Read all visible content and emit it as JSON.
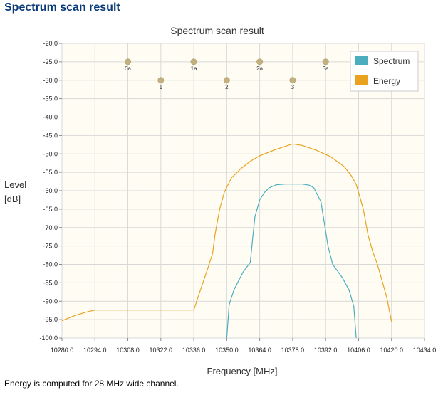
{
  "header": {
    "title": "Spectrum scan result"
  },
  "footer": {
    "note": "Energy is computed for 28 MHz wide channel."
  },
  "colors": {
    "spectrum": "#4aaebf",
    "energy": "#e8a21e",
    "plot_bg": "#fffdf3",
    "grid": "#d8d8d8",
    "marker": "#c2b07e"
  },
  "chart_data": {
    "type": "line",
    "title": "Spectrum scan result",
    "xlabel": "Frequency [MHz]",
    "ylabel": "Level [dB]",
    "ylabel_lines": [
      "Level",
      "[dB]"
    ],
    "xlim": [
      10280,
      10434
    ],
    "ylim": [
      -100,
      -20
    ],
    "x_ticks": [
      "10280.0",
      "10294.0",
      "10308.0",
      "10322.0",
      "10336.0",
      "10350.0",
      "10364.0",
      "10378.0",
      "10392.0",
      "10406.0",
      "10420.0",
      "10434.0"
    ],
    "y_ticks": [
      "-20.0",
      "-25.0",
      "-30.0",
      "-35.0",
      "-40.0",
      "-45.0",
      "-50.0",
      "-55.0",
      "-60.0",
      "-65.0",
      "-70.0",
      "-75.0",
      "-80.0",
      "-85.0",
      "-90.0",
      "-95.0",
      "-100.0"
    ],
    "grid": true,
    "legend": "top-right",
    "channels": [
      {
        "label": "0a",
        "x": 10308,
        "y": -25
      },
      {
        "label": "1",
        "x": 10322,
        "y": -30
      },
      {
        "label": "1a",
        "x": 10336,
        "y": -25
      },
      {
        "label": "2",
        "x": 10350,
        "y": -30
      },
      {
        "label": "2a",
        "x": 10364,
        "y": -25
      },
      {
        "label": "3",
        "x": 10378,
        "y": -30
      },
      {
        "label": "3a",
        "x": 10392,
        "y": -25
      }
    ],
    "series": [
      {
        "name": "Spectrum",
        "x": [
          10350,
          10351,
          10353,
          10357,
          10360,
          10361,
          10362,
          10364,
          10366,
          10368,
          10371,
          10375,
          10378,
          10382,
          10385,
          10387,
          10388,
          10390,
          10391,
          10393,
          10395,
          10399,
          10402,
          10404,
          10405
        ],
        "y": [
          -100,
          -91,
          -87,
          -82,
          -79.5,
          -73,
          -67,
          -62.5,
          -60.5,
          -59.2,
          -58.4,
          -58.2,
          -58.2,
          -58.2,
          -58.5,
          -59.2,
          -60.5,
          -63,
          -67,
          -75,
          -80,
          -83.5,
          -87,
          -91.5,
          -100
        ]
      },
      {
        "name": "Energy",
        "x": [
          10280,
          10285,
          10290,
          10294,
          10300,
          10310,
          10320,
          10330,
          10336,
          10338,
          10342,
          10344,
          10345,
          10347,
          10349,
          10352,
          10356,
          10360,
          10364,
          10370,
          10376,
          10378,
          10382,
          10388,
          10394,
          10400,
          10403,
          10405,
          10406,
          10408,
          10410,
          10412,
          10414,
          10418,
          10420
        ],
        "y": [
          -95.3,
          -94,
          -93,
          -92.4,
          -92.4,
          -92.4,
          -92.4,
          -92.4,
          -92.4,
          -88.5,
          -81,
          -77,
          -72,
          -65,
          -60.3,
          -56.5,
          -54,
          -52,
          -50.5,
          -49,
          -47.7,
          -47.3,
          -47.7,
          -49,
          -50.7,
          -53.5,
          -56,
          -58.3,
          -60.5,
          -65,
          -72,
          -76.5,
          -80,
          -89,
          -95.5
        ]
      }
    ]
  }
}
